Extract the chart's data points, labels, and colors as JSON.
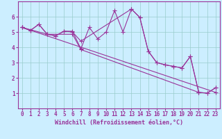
{
  "title": "",
  "xlabel": "Windchill (Refroidissement éolien,°C)",
  "bg_color": "#cceeff",
  "line_color": "#993399",
  "grid_color": "#99cccc",
  "xlim": [
    -0.5,
    23.5
  ],
  "ylim": [
    0,
    7
  ],
  "xticks": [
    0,
    1,
    2,
    3,
    4,
    5,
    6,
    7,
    8,
    9,
    10,
    11,
    12,
    13,
    14,
    15,
    16,
    17,
    18,
    19,
    20,
    21,
    22,
    23
  ],
  "yticks": [
    1,
    2,
    3,
    4,
    5,
    6
  ],
  "series": [
    {
      "x": [
        0,
        1,
        2,
        3,
        4,
        5,
        6,
        7,
        8,
        9,
        10,
        11,
        12,
        13,
        14,
        15,
        16,
        17,
        18,
        19,
        20,
        21,
        22,
        23
      ],
      "y": [
        5.3,
        5.1,
        5.5,
        4.85,
        4.75,
        5.05,
        5.05,
        3.9,
        5.3,
        4.55,
        5.0,
        6.4,
        5.0,
        6.5,
        5.95,
        3.75,
        3.0,
        2.85,
        2.75,
        2.65,
        3.4,
        1.05,
        1.0,
        1.35
      ]
    },
    {
      "x": [
        0,
        1,
        2,
        3,
        4,
        5,
        6,
        7,
        13,
        14,
        15,
        16,
        17,
        18,
        19,
        20,
        21,
        22,
        23
      ],
      "y": [
        5.3,
        5.1,
        5.5,
        4.85,
        4.75,
        5.05,
        5.0,
        4.4,
        6.5,
        5.95,
        3.75,
        3.0,
        2.85,
        2.75,
        2.65,
        3.4,
        1.05,
        1.0,
        1.35
      ]
    },
    {
      "x": [
        0,
        3,
        6,
        7,
        21
      ],
      "y": [
        5.3,
        4.85,
        4.85,
        3.85,
        1.05
      ]
    },
    {
      "x": [
        0,
        23
      ],
      "y": [
        5.3,
        1.05
      ]
    }
  ],
  "marker": "+",
  "markersize": 4,
  "linewidth": 0.8,
  "xlabel_fontsize": 6,
  "tick_fontsize": 5.5
}
